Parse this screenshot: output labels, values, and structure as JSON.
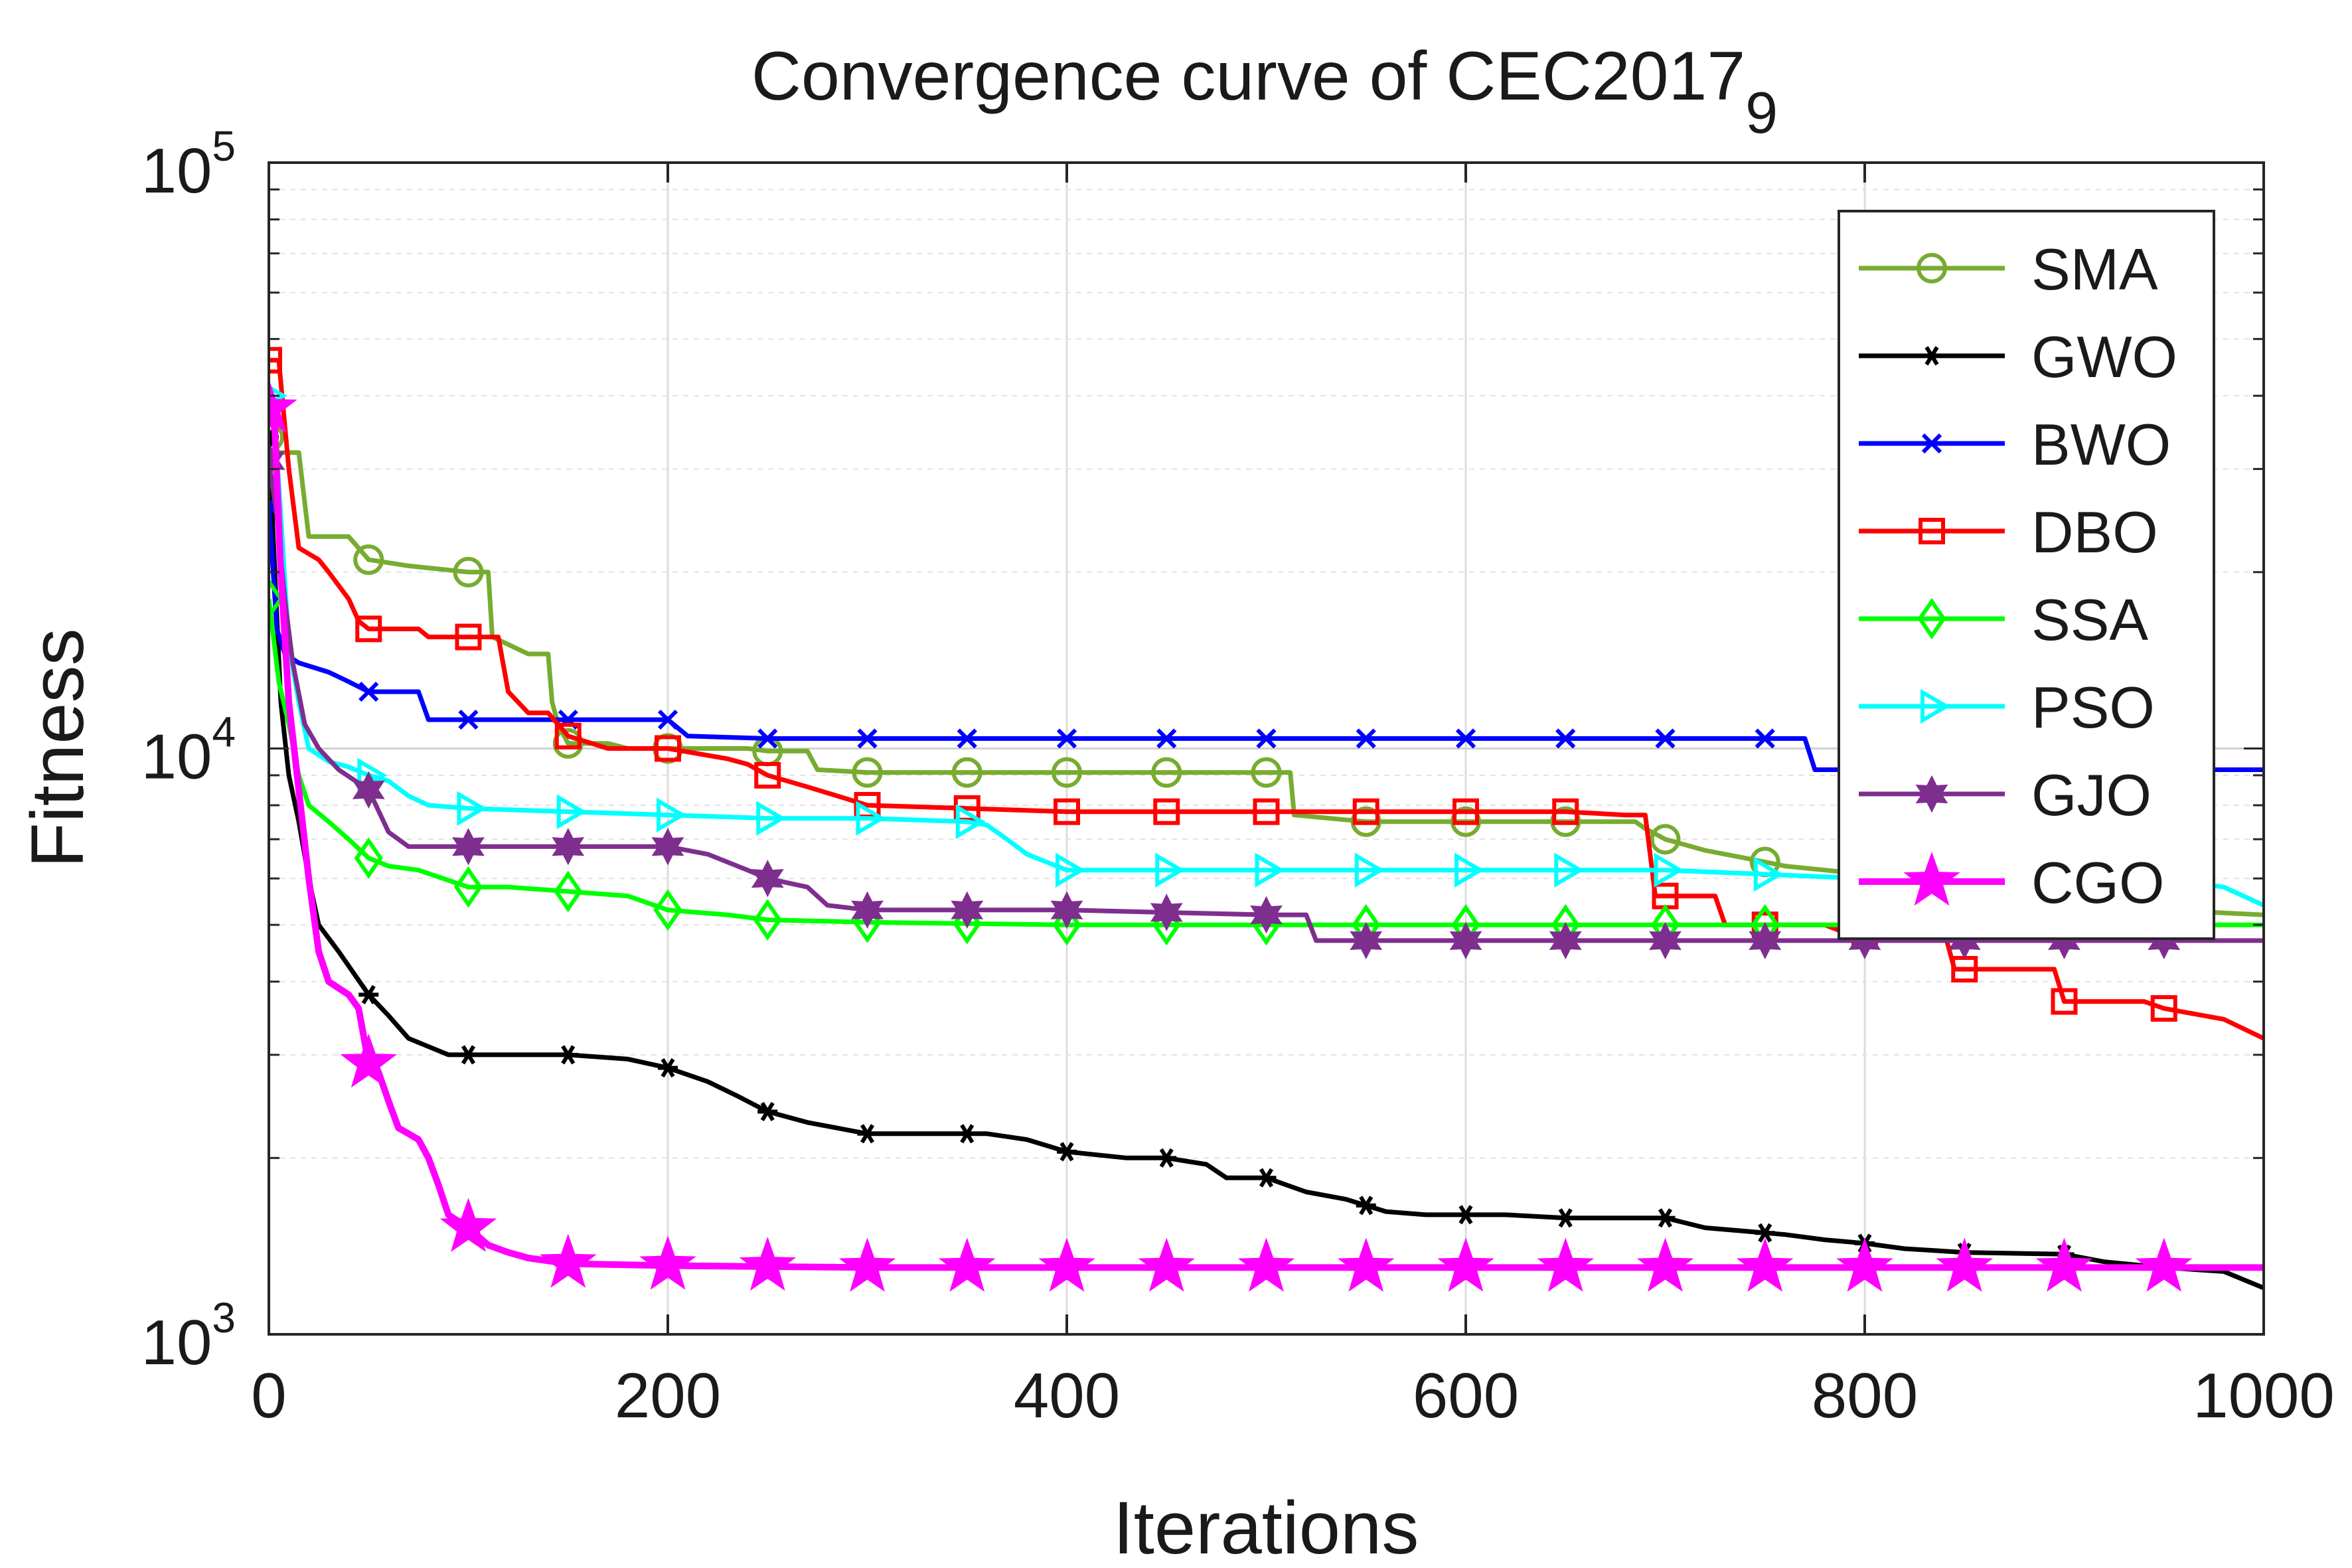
{
  "chart_data": {
    "type": "line",
    "title": "Convergence curve of CEC2017",
    "title_subscript": "9",
    "xlabel": "Iterations",
    "ylabel": "Fitness",
    "xscale": "linear",
    "yscale": "log",
    "xlim": [
      0,
      1000
    ],
    "ylim": [
      1000,
      100000
    ],
    "grid": true,
    "legend_position": "top-right",
    "xticks": [
      0,
      200,
      400,
      600,
      800,
      1000
    ],
    "xtick_labels": [
      "0",
      "200",
      "400",
      "600",
      "800",
      "1000"
    ],
    "yticks": [
      1000,
      10000,
      100000
    ],
    "ytick_bases": [
      "10",
      "10",
      "10"
    ],
    "ytick_exponents": [
      "3",
      "4",
      "5"
    ],
    "marker_every": 50,
    "series": [
      {
        "name": "SMA",
        "color": "#77ac30",
        "marker": "circle",
        "points": [
          [
            0,
            34000
          ],
          [
            5,
            32000
          ],
          [
            15,
            32000
          ],
          [
            20,
            23000
          ],
          [
            40,
            23000
          ],
          [
            50,
            21000
          ],
          [
            70,
            20500
          ],
          [
            100,
            20000
          ],
          [
            110,
            20000
          ],
          [
            112,
            15500
          ],
          [
            130,
            14500
          ],
          [
            140,
            14500
          ],
          [
            142,
            12000
          ],
          [
            145,
            11000
          ],
          [
            150,
            10200
          ],
          [
            170,
            10200
          ],
          [
            180,
            10000
          ],
          [
            230,
            10000
          ],
          [
            240,
            10000
          ],
          [
            250,
            9900
          ],
          [
            270,
            9900
          ],
          [
            275,
            9200
          ],
          [
            300,
            9100
          ],
          [
            500,
            9100
          ],
          [
            512,
            9100
          ],
          [
            514,
            7700
          ],
          [
            550,
            7500
          ],
          [
            600,
            7500
          ],
          [
            685,
            7500
          ],
          [
            690,
            7300
          ],
          [
            700,
            7000
          ],
          [
            720,
            6700
          ],
          [
            740,
            6500
          ],
          [
            750,
            6400
          ],
          [
            760,
            6300
          ],
          [
            780,
            6200
          ],
          [
            800,
            6100
          ],
          [
            850,
            5800
          ],
          [
            900,
            5500
          ],
          [
            950,
            5300
          ],
          [
            1000,
            5200
          ]
        ]
      },
      {
        "name": "GWO",
        "color": "#000000",
        "marker": "asterisk",
        "points": [
          [
            0,
            34000
          ],
          [
            3,
            20000
          ],
          [
            6,
            12000
          ],
          [
            10,
            9000
          ],
          [
            15,
            7500
          ],
          [
            20,
            6000
          ],
          [
            25,
            5000
          ],
          [
            35,
            4500
          ],
          [
            50,
            3800
          ],
          [
            60,
            3500
          ],
          [
            70,
            3200
          ],
          [
            90,
            3000
          ],
          [
            150,
            3000
          ],
          [
            180,
            2950
          ],
          [
            200,
            2850
          ],
          [
            220,
            2700
          ],
          [
            235,
            2550
          ],
          [
            250,
            2400
          ],
          [
            270,
            2300
          ],
          [
            300,
            2200
          ],
          [
            360,
            2200
          ],
          [
            380,
            2150
          ],
          [
            400,
            2050
          ],
          [
            430,
            2000
          ],
          [
            450,
            2000
          ],
          [
            470,
            1950
          ],
          [
            480,
            1850
          ],
          [
            500,
            1850
          ],
          [
            520,
            1750
          ],
          [
            540,
            1700
          ],
          [
            560,
            1620
          ],
          [
            580,
            1600
          ],
          [
            620,
            1600
          ],
          [
            650,
            1580
          ],
          [
            690,
            1580
          ],
          [
            700,
            1580
          ],
          [
            720,
            1520
          ],
          [
            760,
            1480
          ],
          [
            780,
            1450
          ],
          [
            800,
            1430
          ],
          [
            820,
            1400
          ],
          [
            850,
            1380
          ],
          [
            900,
            1370
          ],
          [
            920,
            1330
          ],
          [
            950,
            1300
          ],
          [
            980,
            1280
          ],
          [
            1000,
            1200
          ]
        ]
      },
      {
        "name": "BWO",
        "color": "#0000ff",
        "marker": "x",
        "points": [
          [
            0,
            26000
          ],
          [
            4,
            16000
          ],
          [
            8,
            14500
          ],
          [
            15,
            14000
          ],
          [
            30,
            13500
          ],
          [
            40,
            13000
          ],
          [
            50,
            12500
          ],
          [
            60,
            12500
          ],
          [
            75,
            12500
          ],
          [
            80,
            11200
          ],
          [
            100,
            11200
          ],
          [
            150,
            11200
          ],
          [
            200,
            11200
          ],
          [
            210,
            10500
          ],
          [
            250,
            10400
          ],
          [
            400,
            10400
          ],
          [
            550,
            10400
          ],
          [
            750,
            10400
          ],
          [
            770,
            10400
          ],
          [
            775,
            9200
          ],
          [
            800,
            9200
          ],
          [
            1000,
            9200
          ]
        ]
      },
      {
        "name": "DBO",
        "color": "#ff0000",
        "marker": "square",
        "points": [
          [
            0,
            46000
          ],
          [
            5,
            46000
          ],
          [
            10,
            30000
          ],
          [
            15,
            22000
          ],
          [
            25,
            21000
          ],
          [
            30,
            20000
          ],
          [
            40,
            18000
          ],
          [
            45,
            16500
          ],
          [
            50,
            16000
          ],
          [
            75,
            16000
          ],
          [
            80,
            15500
          ],
          [
            100,
            15500
          ],
          [
            115,
            15500
          ],
          [
            120,
            12500
          ],
          [
            130,
            11500
          ],
          [
            140,
            11500
          ],
          [
            150,
            10500
          ],
          [
            170,
            10000
          ],
          [
            200,
            10000
          ],
          [
            230,
            9600
          ],
          [
            240,
            9400
          ],
          [
            250,
            9000
          ],
          [
            270,
            8600
          ],
          [
            290,
            8200
          ],
          [
            300,
            8000
          ],
          [
            350,
            7900
          ],
          [
            400,
            7800
          ],
          [
            500,
            7800
          ],
          [
            550,
            7800
          ],
          [
            650,
            7800
          ],
          [
            680,
            7700
          ],
          [
            690,
            7700
          ],
          [
            695,
            5600
          ],
          [
            710,
            5600
          ],
          [
            725,
            5600
          ],
          [
            730,
            5000
          ],
          [
            750,
            5000
          ],
          [
            780,
            5000
          ],
          [
            790,
            4850
          ],
          [
            800,
            4850
          ],
          [
            840,
            4850
          ],
          [
            845,
            4200
          ],
          [
            850,
            4200
          ],
          [
            895,
            4200
          ],
          [
            900,
            3700
          ],
          [
            940,
            3700
          ],
          [
            950,
            3600
          ],
          [
            980,
            3450
          ],
          [
            1000,
            3200
          ]
        ]
      },
      {
        "name": "SSA",
        "color": "#00ff00",
        "marker": "diamond",
        "points": [
          [
            0,
            18000
          ],
          [
            5,
            13000
          ],
          [
            10,
            11000
          ],
          [
            15,
            9000
          ],
          [
            20,
            8000
          ],
          [
            30,
            7500
          ],
          [
            40,
            7000
          ],
          [
            50,
            6500
          ],
          [
            60,
            6300
          ],
          [
            75,
            6200
          ],
          [
            100,
            5800
          ],
          [
            120,
            5800
          ],
          [
            150,
            5700
          ],
          [
            180,
            5600
          ],
          [
            200,
            5300
          ],
          [
            230,
            5200
          ],
          [
            250,
            5100
          ],
          [
            300,
            5050
          ],
          [
            400,
            5000
          ],
          [
            500,
            5000
          ],
          [
            1000,
            5000
          ]
        ]
      },
      {
        "name": "PSO",
        "color": "#00ffff",
        "marker": "triangle-right",
        "points": [
          [
            0,
            40000
          ],
          [
            2,
            40000
          ],
          [
            6,
            25000
          ],
          [
            10,
            15000
          ],
          [
            15,
            12000
          ],
          [
            20,
            10000
          ],
          [
            30,
            9500
          ],
          [
            40,
            9300
          ],
          [
            50,
            9000
          ],
          [
            60,
            8800
          ],
          [
            70,
            8300
          ],
          [
            80,
            8000
          ],
          [
            100,
            7900
          ],
          [
            150,
            7800
          ],
          [
            200,
            7700
          ],
          [
            250,
            7600
          ],
          [
            300,
            7600
          ],
          [
            350,
            7500
          ],
          [
            360,
            7400
          ],
          [
            370,
            7000
          ],
          [
            380,
            6600
          ],
          [
            400,
            6200
          ],
          [
            450,
            6200
          ],
          [
            500,
            6200
          ],
          [
            700,
            6200
          ],
          [
            800,
            6000
          ],
          [
            850,
            6000
          ],
          [
            900,
            6000
          ],
          [
            950,
            6000
          ],
          [
            980,
            5800
          ],
          [
            1000,
            5400
          ]
        ]
      },
      {
        "name": "GJO",
        "color": "#7e2f8e",
        "marker": "hexagram",
        "points": [
          [
            0,
            31000
          ],
          [
            4,
            25000
          ],
          [
            8,
            18000
          ],
          [
            12,
            14000
          ],
          [
            18,
            11000
          ],
          [
            25,
            10000
          ],
          [
            35,
            9200
          ],
          [
            50,
            8500
          ],
          [
            60,
            7200
          ],
          [
            70,
            6800
          ],
          [
            100,
            6800
          ],
          [
            200,
            6800
          ],
          [
            220,
            6600
          ],
          [
            240,
            6200
          ],
          [
            250,
            6000
          ],
          [
            270,
            5800
          ],
          [
            280,
            5400
          ],
          [
            300,
            5300
          ],
          [
            400,
            5300
          ],
          [
            500,
            5200
          ],
          [
            520,
            5200
          ],
          [
            525,
            4700
          ],
          [
            550,
            4700
          ],
          [
            1000,
            4700
          ]
        ]
      },
      {
        "name": "CGO",
        "color": "#ff00ff",
        "marker": "pentagram",
        "points": [
          [
            0,
            38000
          ],
          [
            3,
            35000
          ],
          [
            6,
            20000
          ],
          [
            10,
            12000
          ],
          [
            15,
            8500
          ],
          [
            20,
            6000
          ],
          [
            25,
            4500
          ],
          [
            30,
            4000
          ],
          [
            40,
            3800
          ],
          [
            45,
            3600
          ],
          [
            50,
            2900
          ],
          [
            55,
            2800
          ],
          [
            60,
            2500
          ],
          [
            65,
            2250
          ],
          [
            70,
            2200
          ],
          [
            75,
            2150
          ],
          [
            80,
            2000
          ],
          [
            85,
            1800
          ],
          [
            90,
            1600
          ],
          [
            100,
            1520
          ],
          [
            110,
            1420
          ],
          [
            120,
            1380
          ],
          [
            130,
            1350
          ],
          [
            150,
            1320
          ],
          [
            200,
            1310
          ],
          [
            300,
            1300
          ],
          [
            500,
            1300
          ],
          [
            1000,
            1300
          ]
        ]
      }
    ]
  }
}
